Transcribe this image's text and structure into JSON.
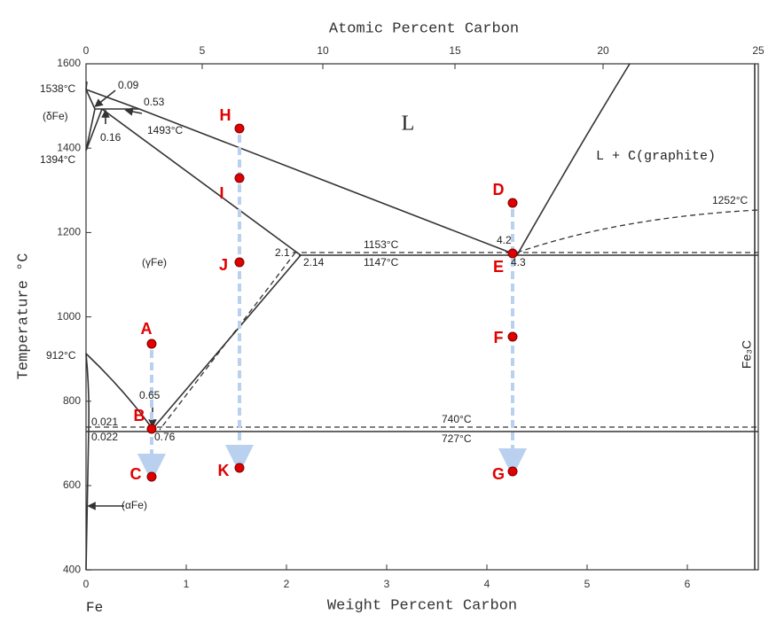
{
  "axes": {
    "top_title": "Atomic Percent Carbon",
    "bottom_title": "Weight Percent Carbon",
    "left_title": "Temperature °C",
    "top_ticks": [
      "0",
      "5",
      "10",
      "15",
      "20",
      "25"
    ],
    "bottom_ticks": [
      "0",
      "1",
      "2",
      "3",
      "4",
      "5",
      "6"
    ],
    "left_ticks": [
      "1600",
      "1400",
      "1200",
      "1000",
      "800",
      "600",
      "400"
    ]
  },
  "annotations": {
    "t1538": "1538°C",
    "c009": "0.09",
    "c053": "0.53",
    "delta": "(δFe)",
    "t1493": "1493°C",
    "c016": "0.16",
    "t1394": "1394°C",
    "liquid": "L",
    "lgraphite": "L + C(graphite)",
    "t1252": "1252°C",
    "c21": "2.1",
    "t1153": "1153°C",
    "c42": "4.2",
    "gamma": "(γFe)",
    "c214": "2.14",
    "t1147": "1147°C",
    "c43": "4.3",
    "t912": "912°C",
    "c065": "0.65",
    "c0021": "0.021",
    "t740": "740°C",
    "c0022": "0.022",
    "c076": "0.76",
    "t727": "727°C",
    "alpha": "(αFe)",
    "fe": "Fe",
    "fe3c": "Fe₃C"
  },
  "points": [
    "A",
    "B",
    "C",
    "D",
    "E",
    "F",
    "G",
    "H",
    "I",
    "J",
    "K"
  ]
}
